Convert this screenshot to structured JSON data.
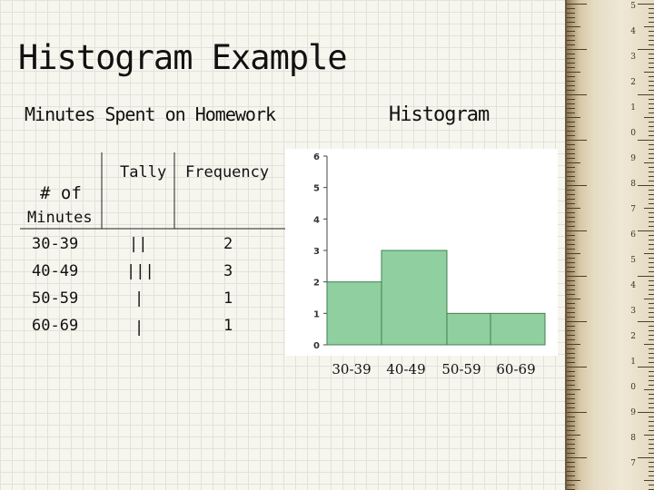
{
  "slide": {
    "title": "Histogram Example",
    "subtitle": "Minutes Spent on Homework",
    "chart_heading": "Histogram"
  },
  "table": {
    "headers": {
      "minutes_line1": "# of",
      "minutes_line2": "Minutes",
      "tally": "Tally",
      "frequency": "Frequency"
    },
    "rows": [
      {
        "range": "30-39",
        "tally": "||",
        "frequency": "2"
      },
      {
        "range": "40-49",
        "tally": "|||",
        "frequency": "3"
      },
      {
        "range": "50-59",
        "tally": "|",
        "frequency": "1"
      },
      {
        "range": "60-69",
        "tally": "|",
        "frequency": "1"
      }
    ]
  },
  "chart_data": {
    "type": "bar",
    "categories": [
      "30-39",
      "40-49",
      "50-59",
      "60-69"
    ],
    "values": [
      2,
      3,
      1,
      1
    ],
    "ylim": [
      0,
      6
    ],
    "yticks": [
      0,
      1,
      2,
      3,
      4,
      5,
      6
    ],
    "grid": false,
    "bar_color": "#90d0a0",
    "bar_border_color": "#3f8050",
    "title": "",
    "xlabel": "",
    "ylabel": ""
  },
  "ruler": {
    "numbers": [
      "5",
      "4",
      "3",
      "2",
      "1",
      "0",
      "9",
      "8",
      "7",
      "6",
      "5",
      "4",
      "3",
      "2",
      "1",
      "0",
      "9",
      "8",
      "7"
    ]
  }
}
